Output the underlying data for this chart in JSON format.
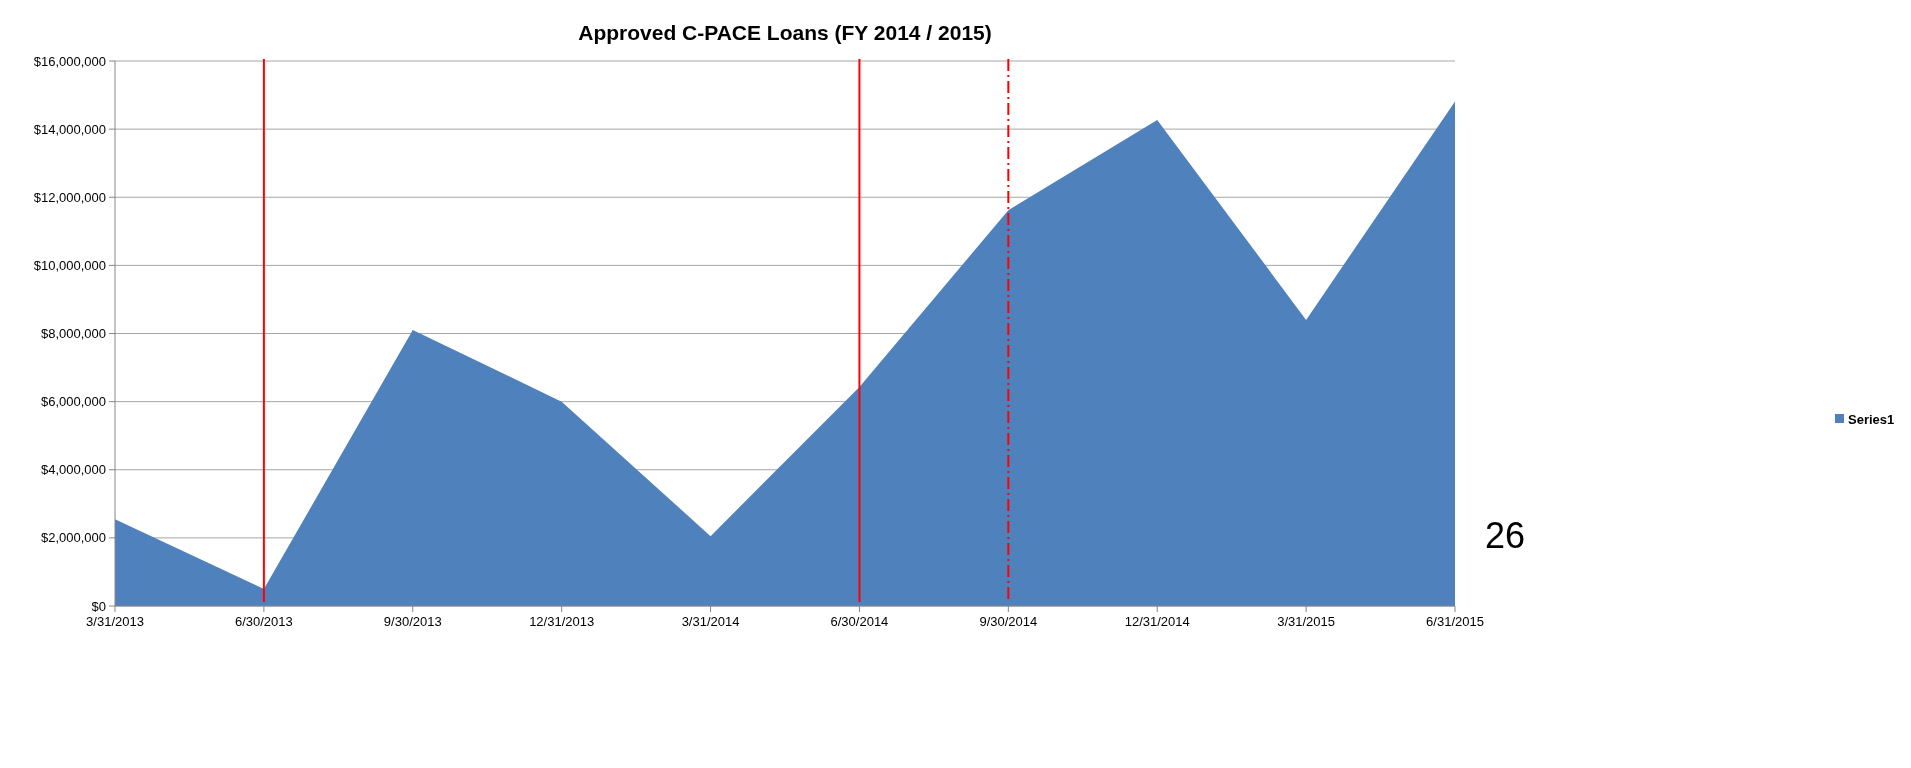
{
  "chart_data": {
    "type": "area",
    "title": "Approved C-PACE Loans (FY 2014 / 2015)",
    "categories": [
      "3/31/2013",
      "6/30/2013",
      "9/30/2013",
      "12/31/2013",
      "3/31/2014",
      "6/30/2014",
      "9/30/2014",
      "12/31/2014",
      "3/31/2015",
      "6/31/2015"
    ],
    "series": [
      {
        "name": "Series1",
        "color": "#4f81bd",
        "values": [
          2550000,
          500000,
          8100000,
          6000000,
          2050000,
          6430000,
          11620000,
          14270000,
          8400000,
          14810000
        ]
      }
    ],
    "ylim": [
      0,
      16000000
    ],
    "yticks": [
      {
        "value": 0,
        "label": "$0"
      },
      {
        "value": 2000000,
        "label": "$2,000,000"
      },
      {
        "value": 4000000,
        "label": "$4,000,000"
      },
      {
        "value": 6000000,
        "label": "$6,000,000"
      },
      {
        "value": 8000000,
        "label": "$8,000,000"
      },
      {
        "value": 10000000,
        "label": "$10,000,000"
      },
      {
        "value": 12000000,
        "label": "$12,000,000"
      },
      {
        "value": 14000000,
        "label": "$14,000,000"
      },
      {
        "value": 16000000,
        "label": "$16,000,000"
      }
    ],
    "grid": "y",
    "legend": "right",
    "ref_lines": [
      {
        "axis": "x",
        "value": "6/30/2013",
        "color": "#ff0000",
        "line_style": "solid"
      },
      {
        "axis": "x",
        "value": "6/30/2014",
        "color": "#ff0000",
        "line_style": "solid"
      },
      {
        "axis": "x",
        "value": "9/30/2014",
        "color": "#ff0000",
        "line_style": "dashed"
      }
    ],
    "annotations": [
      "26"
    ]
  }
}
